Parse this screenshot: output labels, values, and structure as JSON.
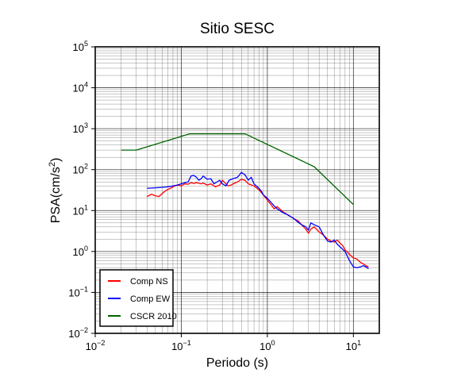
{
  "chart_data": {
    "type": "line",
    "title": "Sitio SESC",
    "xlabel": "Periodo (s)",
    "ylabel_main": "PSA(cm/s",
    "ylabel_sup": "2",
    "ylabel_close": ")",
    "x_scale": "log",
    "y_scale": "log",
    "xlim": [
      0.01,
      20
    ],
    "ylim": [
      0.01,
      100000
    ],
    "grid": true,
    "legend_position": "bottom-left",
    "x_ticks": [
      {
        "value": 0.01,
        "base": "10",
        "exp": "−2"
      },
      {
        "value": 0.1,
        "base": "10",
        "exp": "−1"
      },
      {
        "value": 1,
        "base": "10",
        "exp": "0"
      },
      {
        "value": 10,
        "base": "10",
        "exp": "1"
      }
    ],
    "y_ticks": [
      {
        "value": 0.01,
        "base": "10",
        "exp": "−2"
      },
      {
        "value": 0.1,
        "base": "10",
        "exp": "−1"
      },
      {
        "value": 1,
        "base": "10",
        "exp": "0"
      },
      {
        "value": 10,
        "base": "10",
        "exp": "1"
      },
      {
        "value": 100,
        "base": "10",
        "exp": "2"
      },
      {
        "value": 1000,
        "base": "10",
        "exp": "3"
      },
      {
        "value": 10000,
        "base": "10",
        "exp": "4"
      },
      {
        "value": 100000,
        "base": "10",
        "exp": "5"
      }
    ],
    "series": [
      {
        "name": "Comp NS",
        "color": "#ff0000",
        "points": [
          [
            0.04,
            22
          ],
          [
            0.045,
            25
          ],
          [
            0.05,
            23
          ],
          [
            0.055,
            22
          ],
          [
            0.06,
            26
          ],
          [
            0.065,
            30
          ],
          [
            0.07,
            33
          ],
          [
            0.075,
            35
          ],
          [
            0.08,
            38
          ],
          [
            0.09,
            42
          ],
          [
            0.1,
            40
          ],
          [
            0.11,
            45
          ],
          [
            0.12,
            44
          ],
          [
            0.13,
            48
          ],
          [
            0.14,
            46
          ],
          [
            0.15,
            48
          ],
          [
            0.17,
            45
          ],
          [
            0.18,
            47
          ],
          [
            0.2,
            42
          ],
          [
            0.22,
            45
          ],
          [
            0.25,
            38
          ],
          [
            0.28,
            42
          ],
          [
            0.3,
            55
          ],
          [
            0.33,
            45
          ],
          [
            0.35,
            40
          ],
          [
            0.38,
            42
          ],
          [
            0.4,
            45
          ],
          [
            0.45,
            50
          ],
          [
            0.5,
            58
          ],
          [
            0.55,
            55
          ],
          [
            0.6,
            45
          ],
          [
            0.7,
            40
          ],
          [
            0.8,
            32
          ],
          [
            0.9,
            24
          ],
          [
            1.0,
            18
          ],
          [
            1.1,
            14
          ],
          [
            1.2,
            11
          ],
          [
            1.3,
            12.5
          ],
          [
            1.5,
            9.5
          ],
          [
            1.7,
            8
          ],
          [
            2.0,
            6.5
          ],
          [
            2.3,
            5.5
          ],
          [
            2.5,
            4.5
          ],
          [
            2.8,
            3.5
          ],
          [
            3.0,
            2.8
          ],
          [
            3.2,
            3.5
          ],
          [
            3.5,
            4.0
          ],
          [
            4.0,
            3.0
          ],
          [
            4.5,
            2.5
          ],
          [
            5.0,
            2.0
          ],
          [
            5.5,
            1.8
          ],
          [
            6.0,
            1.7
          ],
          [
            6.5,
            1.9
          ],
          [
            7.0,
            1.6
          ],
          [
            7.5,
            1.4
          ],
          [
            8.0,
            1.1
          ],
          [
            9.0,
            0.85
          ],
          [
            10.0,
            0.7
          ],
          [
            11.0,
            0.65
          ],
          [
            12.0,
            0.55
          ],
          [
            13.0,
            0.5
          ],
          [
            14.0,
            0.45
          ],
          [
            15.0,
            0.42
          ]
        ]
      },
      {
        "name": "Comp EW",
        "color": "#0000ff",
        "points": [
          [
            0.04,
            35
          ],
          [
            0.05,
            36
          ],
          [
            0.06,
            37
          ],
          [
            0.07,
            38
          ],
          [
            0.08,
            40
          ],
          [
            0.09,
            42
          ],
          [
            0.1,
            45
          ],
          [
            0.11,
            48
          ],
          [
            0.12,
            50
          ],
          [
            0.13,
            70
          ],
          [
            0.14,
            72
          ],
          [
            0.15,
            65
          ],
          [
            0.16,
            55
          ],
          [
            0.17,
            60
          ],
          [
            0.18,
            70
          ],
          [
            0.2,
            58
          ],
          [
            0.22,
            60
          ],
          [
            0.24,
            45
          ],
          [
            0.26,
            50
          ],
          [
            0.28,
            55
          ],
          [
            0.3,
            45
          ],
          [
            0.33,
            40
          ],
          [
            0.36,
            55
          ],
          [
            0.4,
            60
          ],
          [
            0.45,
            65
          ],
          [
            0.5,
            85
          ],
          [
            0.55,
            75
          ],
          [
            0.6,
            55
          ],
          [
            0.65,
            65
          ],
          [
            0.7,
            45
          ],
          [
            0.8,
            35
          ],
          [
            0.85,
            30
          ],
          [
            0.9,
            24
          ],
          [
            1.0,
            20
          ],
          [
            1.1,
            16
          ],
          [
            1.2,
            13
          ],
          [
            1.3,
            11
          ],
          [
            1.4,
            10
          ],
          [
            1.5,
            9
          ],
          [
            1.7,
            8
          ],
          [
            2.0,
            6.5
          ],
          [
            2.2,
            5.5
          ],
          [
            2.5,
            4.5
          ],
          [
            2.8,
            4
          ],
          [
            3.0,
            3.3
          ],
          [
            3.2,
            5
          ],
          [
            3.5,
            4.5
          ],
          [
            4.0,
            4.0
          ],
          [
            4.5,
            2.5
          ],
          [
            5.0,
            1.8
          ],
          [
            5.5,
            1.7
          ],
          [
            6.0,
            1.9
          ],
          [
            6.5,
            1.5
          ],
          [
            7.0,
            1.3
          ],
          [
            8.0,
            1.0
          ],
          [
            9.0,
            0.6
          ],
          [
            10.0,
            0.42
          ],
          [
            11.0,
            0.4
          ],
          [
            12.0,
            0.42
          ],
          [
            13.0,
            0.45
          ],
          [
            14.0,
            0.42
          ],
          [
            15.0,
            0.38
          ]
        ]
      },
      {
        "name": "CSCR 2010",
        "color": "#006400",
        "points": [
          [
            0.02,
            300
          ],
          [
            0.03,
            300
          ],
          [
            0.125,
            750
          ],
          [
            0.55,
            750
          ],
          [
            3.5,
            118
          ],
          [
            10,
            14
          ]
        ]
      }
    ]
  }
}
